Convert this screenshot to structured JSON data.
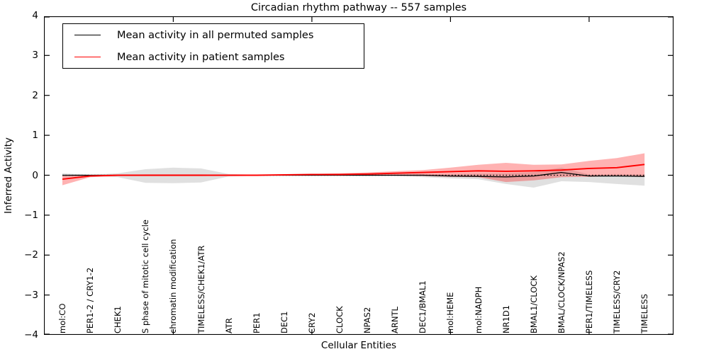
{
  "chart_data": {
    "type": "line",
    "title": "Circadian rhythm pathway -- 557 samples",
    "xlabel": "Cellular Entities",
    "ylabel": "Inferred Activity",
    "ylim": [
      -4,
      4
    ],
    "yticks": [
      -4,
      -3,
      -2,
      -1,
      0,
      1,
      2,
      3,
      4
    ],
    "grid": false,
    "legend_position": "upper left",
    "xtick_major_indices": [
      4,
      9,
      14,
      19
    ],
    "categories": [
      "mol:CO",
      "PER1-2 / CRY1-2",
      "CHEK1",
      "S phase of mitotic cell cycle",
      "chromatin modification",
      "TIMELESS/CHEK1/ATR",
      "ATR",
      "PER1",
      "DEC1",
      "CRY2",
      "CLOCK",
      "NPAS2",
      "ARNTL",
      "DEC1/BMAL1",
      "mol:HEME",
      "mol:NADPH",
      "NR1D1",
      "BMAL1/CLOCK",
      "BMAL/CLOCK/NPAS2",
      "PER1/TIMELESS",
      "TIMELESS/CRY2",
      "TIMELESS"
    ],
    "zero_line": {
      "y": 0,
      "style": "dotted",
      "color": "#000000"
    },
    "series": [
      {
        "name": "Mean activity in all permuted samples",
        "color": "#000000",
        "band_color": "#000000",
        "band_opacity": 0.12,
        "values": [
          0.0,
          0.0,
          0.0,
          0.0,
          0.0,
          0.0,
          0.0,
          0.0,
          0.0,
          0.0,
          0.0,
          0.0,
          0.0,
          0.0,
          -0.02,
          -0.03,
          -0.04,
          -0.02,
          0.07,
          -0.02,
          -0.02,
          -0.03
        ],
        "band_upper": [
          0.05,
          0.01,
          0.05,
          0.15,
          0.19,
          0.17,
          0.03,
          0.01,
          0.01,
          0.01,
          0.01,
          0.02,
          0.02,
          0.03,
          0.03,
          0.04,
          0.05,
          0.08,
          0.19,
          0.02,
          0.03,
          0.02
        ],
        "band_lower": [
          -0.05,
          -0.01,
          -0.05,
          -0.19,
          -0.2,
          -0.18,
          -0.03,
          -0.01,
          -0.01,
          -0.01,
          -0.01,
          -0.02,
          -0.02,
          -0.05,
          -0.08,
          -0.1,
          -0.22,
          -0.31,
          -0.15,
          -0.17,
          -0.22,
          -0.26
        ]
      },
      {
        "name": "Mean activity in patient samples",
        "color": "#ff0000",
        "band_color": "#ff0000",
        "band_opacity": 0.3,
        "values": [
          -0.1,
          -0.02,
          0.0,
          0.0,
          0.0,
          0.0,
          0.0,
          0.0,
          0.01,
          0.02,
          0.02,
          0.03,
          0.05,
          0.07,
          0.09,
          0.11,
          0.1,
          0.11,
          0.13,
          0.17,
          0.19,
          0.27
        ],
        "band_upper": [
          -0.02,
          0.0,
          0.01,
          0.02,
          0.02,
          0.02,
          0.01,
          0.01,
          0.02,
          0.03,
          0.05,
          0.07,
          0.1,
          0.13,
          0.19,
          0.26,
          0.31,
          0.26,
          0.27,
          0.36,
          0.43,
          0.55
        ],
        "band_lower": [
          -0.25,
          -0.05,
          -0.02,
          -0.02,
          -0.02,
          -0.02,
          -0.01,
          -0.01,
          0.0,
          0.0,
          0.0,
          0.0,
          -0.01,
          -0.02,
          -0.04,
          -0.05,
          -0.17,
          -0.13,
          -0.05,
          -0.04,
          -0.01,
          -0.02
        ]
      }
    ]
  },
  "legend": {
    "items": [
      {
        "label": "Mean activity in all permuted samples",
        "color": "#000000"
      },
      {
        "label": "Mean activity in patient samples",
        "color": "#ff0000"
      }
    ]
  },
  "colors": {
    "frame": "#000000",
    "background": "#ffffff",
    "permuted": "#000000",
    "patient": "#ff0000"
  }
}
